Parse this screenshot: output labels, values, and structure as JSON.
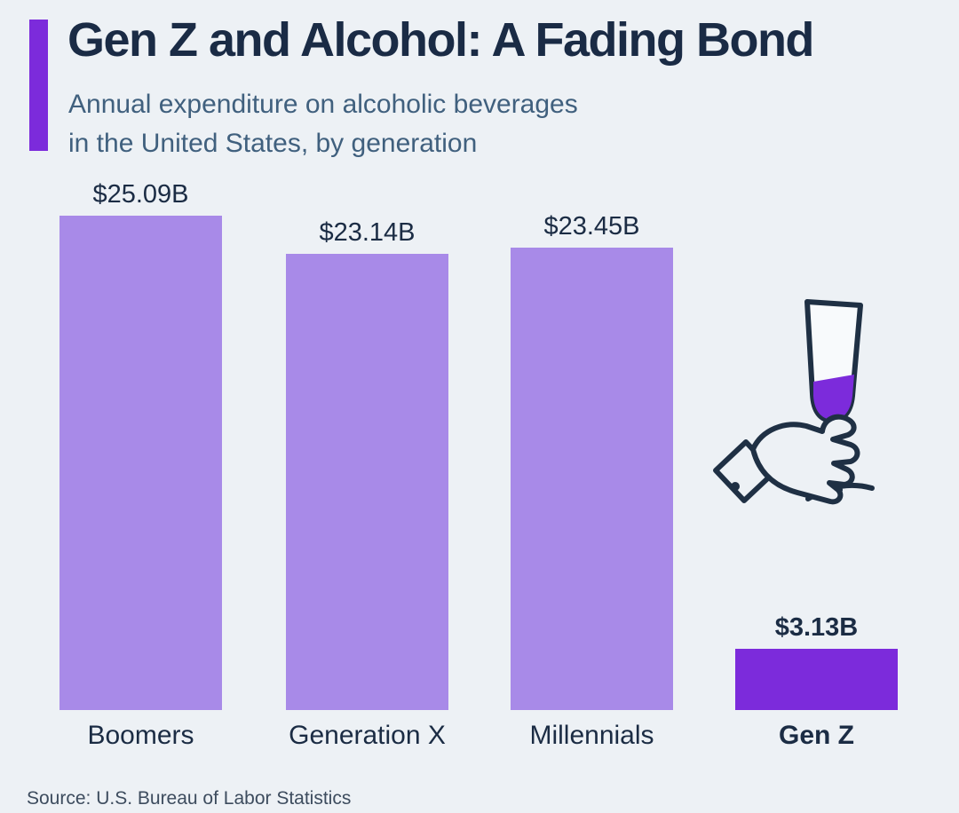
{
  "colors": {
    "background": "#edf1f5",
    "accent": "#7c2bdb",
    "bar_light": "#a88ae8",
    "title_text": "#1a2b45",
    "subtitle_text": "#40607e",
    "source_text": "#3d4c5e",
    "icon_outline": "#1f3044"
  },
  "header": {
    "title": "Gen Z and Alcohol: A Fading Bond",
    "subtitle_line1": "Annual expenditure on alcoholic beverages",
    "subtitle_line2": "in the United States, by generation"
  },
  "chart_data": {
    "type": "bar",
    "title": "Gen Z and Alcohol: A Fading Bond",
    "subtitle": "Annual expenditure on alcoholic beverages in the United States, by generation",
    "categories": [
      "Boomers",
      "Generation X",
      "Millennials",
      "Gen Z"
    ],
    "values": [
      25.09,
      23.14,
      23.45,
      3.13
    ],
    "value_labels": [
      "$25.09B",
      "$23.14B",
      "$23.45B",
      "$3.13B"
    ],
    "unit": "billions of US dollars per year",
    "ylim": [
      0,
      25.09
    ],
    "bar_colors": [
      "#a88ae8",
      "#a88ae8",
      "#a88ae8",
      "#7c2bdb"
    ],
    "highlight_category": "Gen Z",
    "legend": "none",
    "grid": false
  },
  "icons": {
    "hand_glass": "hand-holding-wine-glass-icon"
  },
  "footer": {
    "source": "Source: U.S. Bureau of Labor Statistics"
  }
}
